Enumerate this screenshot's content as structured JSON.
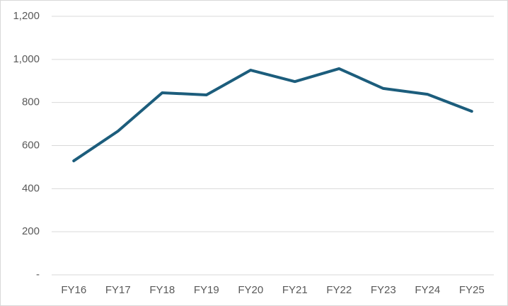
{
  "chart_data": {
    "type": "line",
    "categories": [
      "FY16",
      "FY17",
      "FY18",
      "FY19",
      "FY20",
      "FY21",
      "FY22",
      "FY23",
      "FY24",
      "FY25"
    ],
    "series": [
      {
        "color": "#1c5d7c",
        "values": [
          529,
          667,
          845,
          835,
          950,
          897,
          957,
          865,
          838,
          759
        ]
      }
    ],
    "ylim": [
      0,
      1200
    ],
    "yticks": [
      {
        "value": 0,
        "label": "-"
      },
      200,
      400,
      600,
      800,
      {
        "value": 1000,
        "label": "1,000"
      },
      {
        "value": 1200,
        "label": "1,200"
      }
    ],
    "grid": true
  }
}
